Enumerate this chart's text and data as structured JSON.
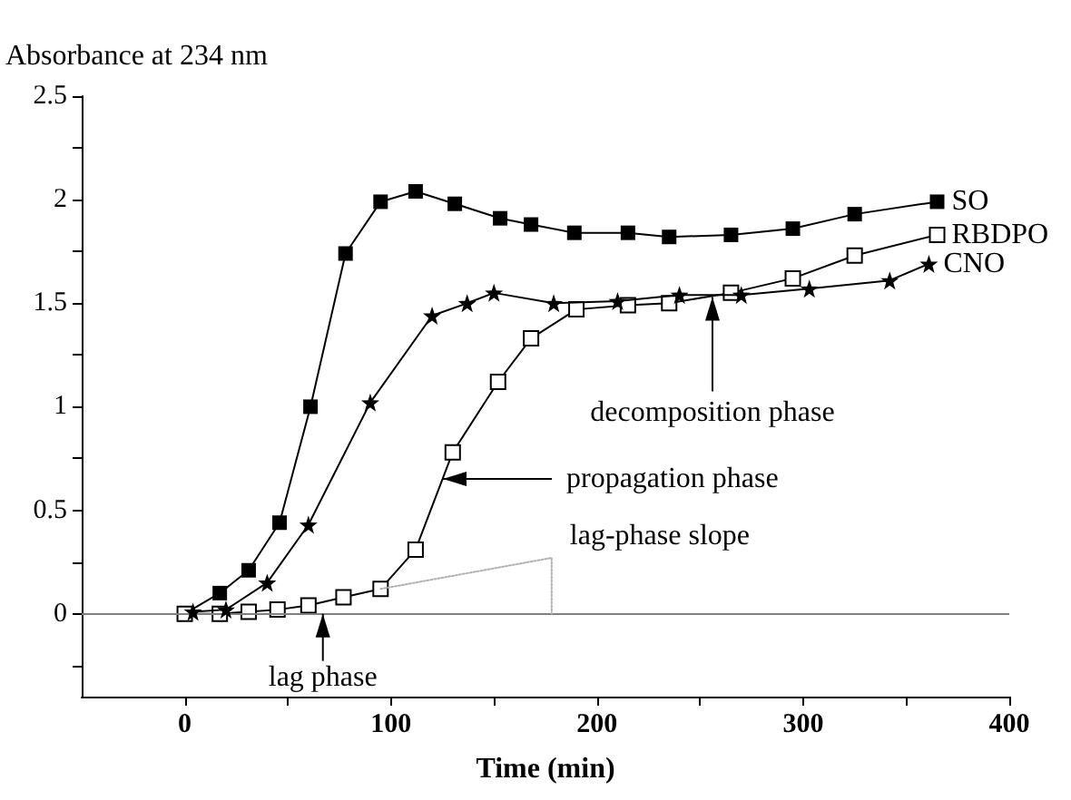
{
  "chart_data": {
    "type": "line",
    "xlabel": "Time (min)",
    "ylabel": "Absorbance at 234 nm",
    "xlim": [
      -50,
      400
    ],
    "xticks": [
      0,
      {
        "value": 50,
        "label": null
      },
      100,
      {
        "value": 150,
        "label": null
      },
      200,
      {
        "value": 250,
        "label": null
      },
      300,
      {
        "value": 350,
        "label": null
      },
      400
    ],
    "ylim": [
      -0.4,
      2.5
    ],
    "yticks": [
      {
        "value": -0.25,
        "label": null
      },
      0,
      {
        "value": 0.25,
        "label": null
      },
      0.5,
      {
        "value": 0.75,
        "label": null
      },
      1,
      {
        "value": 1.25,
        "label": null
      },
      1.5,
      {
        "value": 1.75,
        "label": null
      },
      2,
      {
        "value": 2.25,
        "label": null
      },
      2.5
    ],
    "grid": false,
    "legend": false,
    "line_style": "solid",
    "series": [
      {
        "name": "SO",
        "color": "#000000",
        "marker": "square",
        "x": [
          0,
          17,
          31,
          46,
          61,
          78,
          95,
          112,
          131,
          153,
          168,
          189,
          215,
          235,
          265,
          295,
          325,
          365
        ],
        "values": [
          0,
          0.1,
          0.21,
          0.44,
          1.0,
          1.74,
          1.99,
          2.04,
          1.98,
          1.91,
          1.88,
          1.84,
          1.84,
          1.82,
          1.83,
          1.86,
          1.93,
          1.99
        ]
      },
      {
        "name": "RBDPO",
        "color": "#000000",
        "marker": "square",
        "x": [
          0,
          17,
          31,
          45,
          60,
          77,
          95,
          112,
          130,
          152,
          168,
          190,
          215,
          235,
          265,
          295,
          325,
          365
        ],
        "values": [
          0,
          0,
          0.01,
          0.02,
          0.04,
          0.08,
          0.12,
          0.31,
          0.78,
          1.12,
          1.33,
          1.47,
          1.49,
          1.5,
          1.55,
          1.62,
          1.73,
          1.83
        ]
      },
      {
        "name": "CNO",
        "color": "#000000",
        "marker": "star",
        "x": [
          4,
          20,
          40,
          60,
          90,
          120,
          137,
          150,
          179,
          210,
          240,
          270,
          303,
          342,
          361
        ],
        "values": [
          0.01,
          0.02,
          0.15,
          0.43,
          1.02,
          1.44,
          1.5,
          1.55,
          1.5,
          1.51,
          1.54,
          1.54,
          1.57,
          1.61,
          1.69
        ]
      },
      {
        "type": "line",
        "color": "#b0b0b0",
        "marker": "none",
        "line_style": "dotted",
        "x": [
          95,
          178,
          178
        ],
        "values": [
          0.12,
          0.27,
          0
        ]
      }
    ],
    "ref_lines": [
      {
        "axis": "y",
        "value": 0,
        "color": "#808080",
        "line_style": "solid"
      }
    ],
    "annotations": [
      {
        "text": "lag phase",
        "x": 67,
        "y": 0
      },
      "propagation phase",
      {
        "text": "decomposition phase",
        "x": 256,
        "y": 1.53
      },
      {
        "text": "lag-phase slope",
        "x": 178,
        "y": 0.27
      }
    ]
  }
}
